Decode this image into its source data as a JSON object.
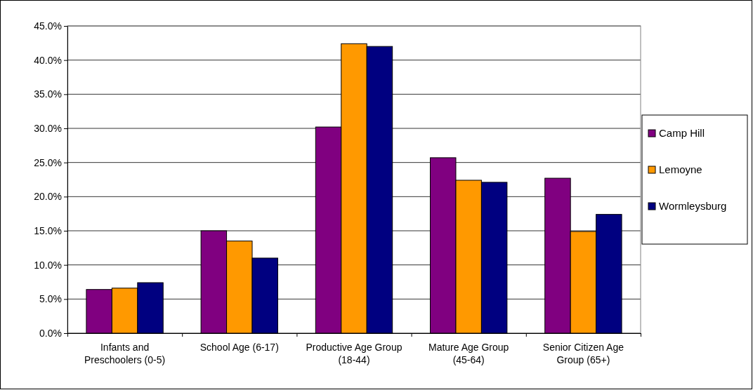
{
  "chart_data": {
    "type": "bar",
    "categories": [
      "Infants and Preschoolers (0-5)",
      "School Age (6-17)",
      "Productive Age Group (18-44)",
      "Mature Age Group (45-64)",
      "Senior Citizen Age Group (65+)"
    ],
    "series": [
      {
        "name": "Camp Hill",
        "color": "#800080",
        "values": [
          6.4,
          15.0,
          30.2,
          25.7,
          22.7
        ]
      },
      {
        "name": "Lemoyne",
        "color": "#ff9900",
        "values": [
          6.6,
          13.5,
          42.4,
          22.4,
          14.9
        ]
      },
      {
        "name": "Wormleysburg",
        "color": "#000080",
        "values": [
          7.4,
          11.0,
          42.0,
          22.1,
          17.4
        ]
      }
    ],
    "ylim": [
      0,
      45
    ],
    "yticks": [
      {
        "value": 0,
        "label": "0.0%"
      },
      {
        "value": 5,
        "label": "5.0%"
      },
      {
        "value": 10,
        "label": "10.0%"
      },
      {
        "value": 15,
        "label": "15.0%"
      },
      {
        "value": 20,
        "label": "20.0%"
      },
      {
        "value": 25,
        "label": "25.0%"
      },
      {
        "value": 30,
        "label": "30.0%"
      },
      {
        "value": 35,
        "label": "35.0%"
      },
      {
        "value": 40,
        "label": "40.0%"
      },
      {
        "value": 45,
        "label": "45.0%"
      }
    ],
    "grid": "y",
    "legend": "right"
  }
}
